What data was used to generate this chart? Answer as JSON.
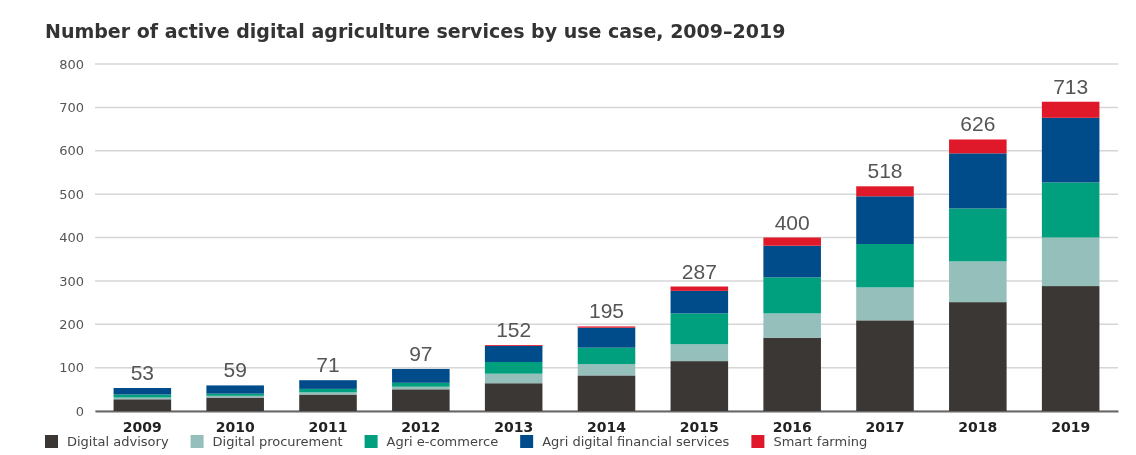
{
  "chart_data": {
    "type": "bar",
    "title": "Number of active digital agriculture services by use case, 2009–2019",
    "categories": [
      "2009",
      "2010",
      "2011",
      "2012",
      "2013",
      "2014",
      "2015",
      "2016",
      "2017",
      "2018",
      "2019"
    ],
    "stacked": true,
    "series": [
      {
        "name": "Digital advisory",
        "color": "#3b3735",
        "values": [
          27,
          31,
          38,
          50,
          64,
          82,
          115,
          169,
          209,
          251,
          288
        ]
      },
      {
        "name": "Digital procurement",
        "color": "#95bfbb",
        "values": [
          4,
          4,
          5,
          6,
          22,
          26,
          39,
          56,
          76,
          94,
          112
        ]
      },
      {
        "name": "Agri e-commerce",
        "color": "#00a07e",
        "values": [
          7,
          5,
          8,
          9,
          27,
          38,
          71,
          83,
          100,
          122,
          127
        ]
      },
      {
        "name": "Agri digital financial services",
        "color": "#004c8a",
        "values": [
          15,
          19,
          20,
          32,
          37,
          46,
          52,
          73,
          110,
          127,
          149
        ]
      },
      {
        "name": "Smart farming",
        "color": "#e0192a",
        "values": [
          0,
          0,
          0,
          0,
          2,
          3,
          10,
          19,
          23,
          32,
          37
        ]
      }
    ],
    "totals": [
      "53",
      "59",
      "71",
      "97",
      "152",
      "195",
      "287",
      "400",
      "518",
      "626",
      "713"
    ],
    "ylim": [
      0,
      800
    ],
    "yticks": [
      0,
      100,
      200,
      300,
      400,
      500,
      600,
      700,
      800
    ],
    "grid": "y",
    "legend": "bottom"
  }
}
